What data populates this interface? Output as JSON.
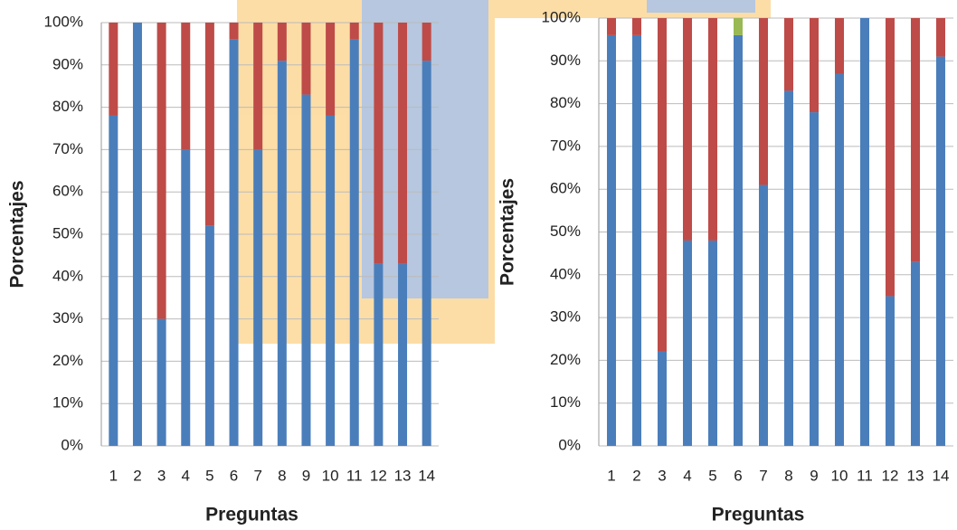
{
  "chart_data": [
    {
      "type": "stacked_bar",
      "x_label": "Preguntas",
      "y_label": "Porcentajes",
      "categories": [
        "1",
        "2",
        "3",
        "4",
        "5",
        "6",
        "7",
        "8",
        "9",
        "10",
        "11",
        "12",
        "13",
        "14"
      ],
      "series": [
        {
          "color": "#4a7ebb",
          "values": [
            78,
            100,
            30,
            70,
            52,
            96,
            70,
            91,
            83,
            78,
            96,
            43,
            43,
            91
          ]
        },
        {
          "color": "#be4b48",
          "values": [
            22,
            0,
            70,
            30,
            48,
            4,
            30,
            9,
            17,
            22,
            4,
            57,
            57,
            9
          ]
        }
      ],
      "ylim": [
        0,
        100
      ],
      "yticks": [
        {
          "value": 0,
          "label": "0%"
        },
        {
          "value": 10,
          "label": "10%"
        },
        {
          "value": 20,
          "label": "20%"
        },
        {
          "value": 30,
          "label": "30%"
        },
        {
          "value": 40,
          "label": "40%"
        },
        {
          "value": 50,
          "label": "50%"
        },
        {
          "value": 60,
          "label": "60%"
        },
        {
          "value": 70,
          "label": "70%"
        },
        {
          "value": 80,
          "label": "80%"
        },
        {
          "value": 90,
          "label": "90%"
        },
        {
          "value": 100,
          "label": "100%"
        }
      ],
      "grid": true
    },
    {
      "type": "stacked_bar",
      "x_label": "Preguntas",
      "y_label": "Porcentajes",
      "categories": [
        "1",
        "2",
        "3",
        "4",
        "5",
        "6",
        "7",
        "8",
        "9",
        "10",
        "11",
        "12",
        "13",
        "14"
      ],
      "series": [
        {
          "color": "#4a7ebb",
          "values": [
            96,
            96,
            22,
            48,
            48,
            96,
            61,
            83,
            78,
            87,
            100,
            35,
            43,
            91
          ]
        },
        {
          "color": "#be4b48",
          "values": [
            4,
            4,
            78,
            52,
            52,
            0,
            39,
            17,
            22,
            13,
            0,
            65,
            57,
            9
          ]
        },
        {
          "color": "#98b954",
          "values": [
            0,
            0,
            0,
            0,
            0,
            4,
            0,
            0,
            0,
            0,
            0,
            0,
            0,
            0
          ]
        }
      ],
      "ylim": [
        0,
        100
      ],
      "yticks": [
        {
          "value": 0,
          "label": "0%"
        },
        {
          "value": 10,
          "label": "10%"
        },
        {
          "value": 20,
          "label": "20%"
        },
        {
          "value": 30,
          "label": "30%"
        },
        {
          "value": 40,
          "label": "40%"
        },
        {
          "value": 50,
          "label": "50%"
        },
        {
          "value": 60,
          "label": "60%"
        },
        {
          "value": 70,
          "label": "70%"
        },
        {
          "value": 80,
          "label": "80%"
        },
        {
          "value": 90,
          "label": "90%"
        },
        {
          "value": 100,
          "label": "100%"
        }
      ],
      "grid": true
    }
  ]
}
